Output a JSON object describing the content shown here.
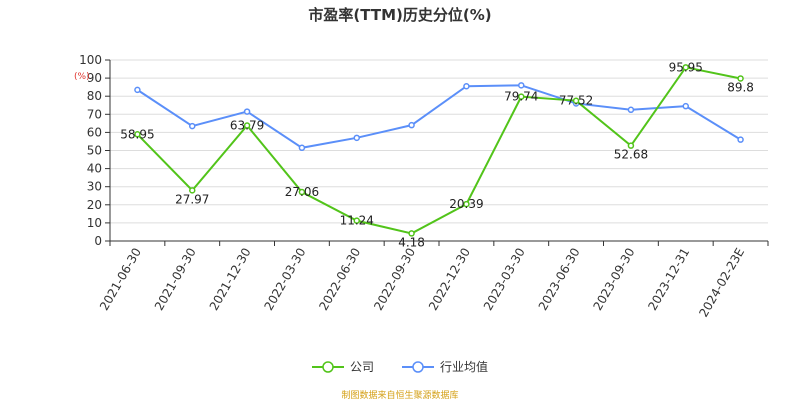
{
  "title": "市盈率(TTM)历史分位(%)",
  "unit_label": "(%)",
  "source": "制图数据来自恒生聚源数据库",
  "colors": {
    "company": "#52c41a",
    "industry": "#5b8ff9"
  },
  "chart_data": {
    "type": "line",
    "title": "市盈率(TTM)历史分位(%)",
    "xlabel": "",
    "ylabel": "(%)",
    "ylim": [
      0,
      100
    ],
    "yticks": [
      0,
      10,
      20,
      30,
      40,
      50,
      60,
      70,
      80,
      90,
      100
    ],
    "grid": true,
    "legend_position": "bottom",
    "categories": [
      "2021-06-30",
      "2021-09-30",
      "2021-12-30",
      "2022-03-30",
      "2022-06-30",
      "2022-09-30",
      "2022-12-30",
      "2023-03-30",
      "2023-06-30",
      "2023-09-30",
      "2023-12-31",
      "2024-02-23E"
    ],
    "series": [
      {
        "name": "公司",
        "color": "#52c41a",
        "values": [
          58.95,
          27.97,
          63.79,
          27.06,
          11.24,
          4.18,
          20.39,
          79.74,
          77.52,
          52.68,
          95.95,
          89.8
        ],
        "labels": [
          "58.95",
          "27.97",
          "63.79",
          "27.06",
          "11.24",
          "4.18",
          "20.39",
          "79.74",
          "77.52",
          "52.68",
          "95.95",
          "89.8"
        ]
      },
      {
        "name": "行业均值",
        "color": "#5b8ff9",
        "values": [
          83.5,
          63.5,
          71.5,
          51.5,
          57,
          64,
          85.5,
          86,
          76,
          72.5,
          74.5,
          56
        ]
      }
    ]
  }
}
